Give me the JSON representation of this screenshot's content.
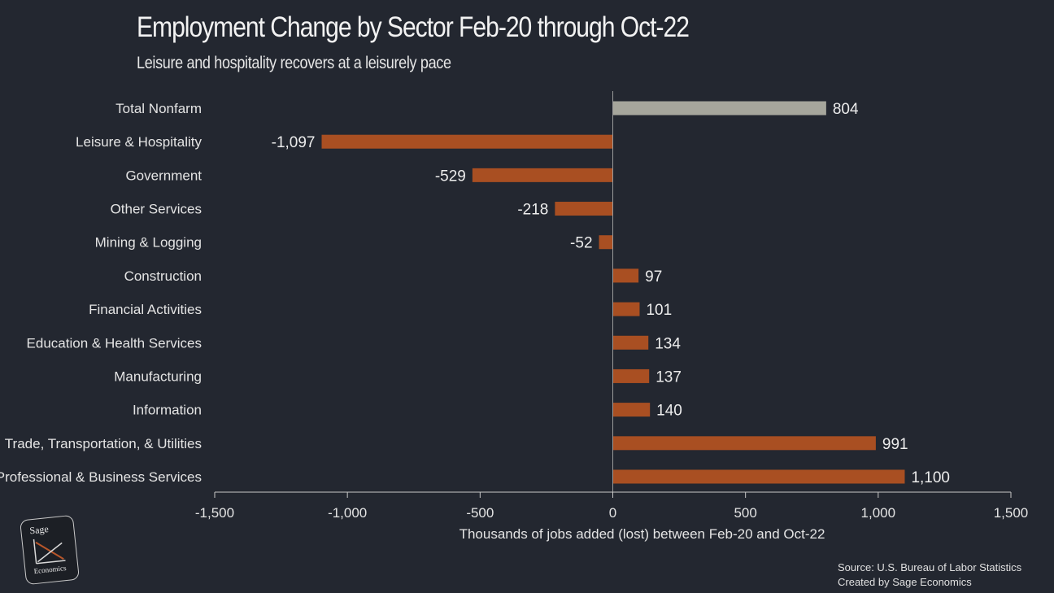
{
  "title": "Employment Change by Sector Feb-20 through Oct-22",
  "subtitle": "Leisure and hospitality recovers at a leisurely pace",
  "source_lines": [
    "Source: U.S. Bureau of Labor Statistics",
    "Created by Sage Economics"
  ],
  "logo": {
    "top": "Sage",
    "bottom": "Economics"
  },
  "colors": {
    "background": "#232730",
    "bar": "#a94f22",
    "total_bar": "#a6a69c",
    "axis": "#c8c8c8"
  },
  "chart_data": {
    "type": "bar",
    "orientation": "horizontal",
    "categories": [
      "Total Nonfarm",
      "Leisure & Hospitality",
      "Government",
      "Other Services",
      "Mining & Logging",
      "Construction",
      "Financial Activities",
      "Education & Health Services",
      "Manufacturing",
      "Information",
      "Trade, Transportation, & Utilities",
      "Professional & Business Services"
    ],
    "values": [
      804,
      -1097,
      -529,
      -218,
      -52,
      97,
      101,
      134,
      137,
      140,
      991,
      1100
    ],
    "value_labels": [
      "804",
      "-1,097",
      "-529",
      "-218",
      "-52",
      "97",
      "101",
      "134",
      "137",
      "140",
      "991",
      "1,100"
    ],
    "xlim": [
      -1500,
      1500
    ],
    "xticks": [
      -1500,
      -1000,
      -500,
      0,
      500,
      1000,
      1500
    ],
    "xtick_labels": [
      "-1,500",
      "-1,000",
      "-500",
      "0",
      "500",
      "1,000",
      "1,500"
    ],
    "xlabel": "Thousands of jobs added (lost) between Feb-20 and Oct-22",
    "ylabel": "",
    "grid": false,
    "legend": "none"
  }
}
